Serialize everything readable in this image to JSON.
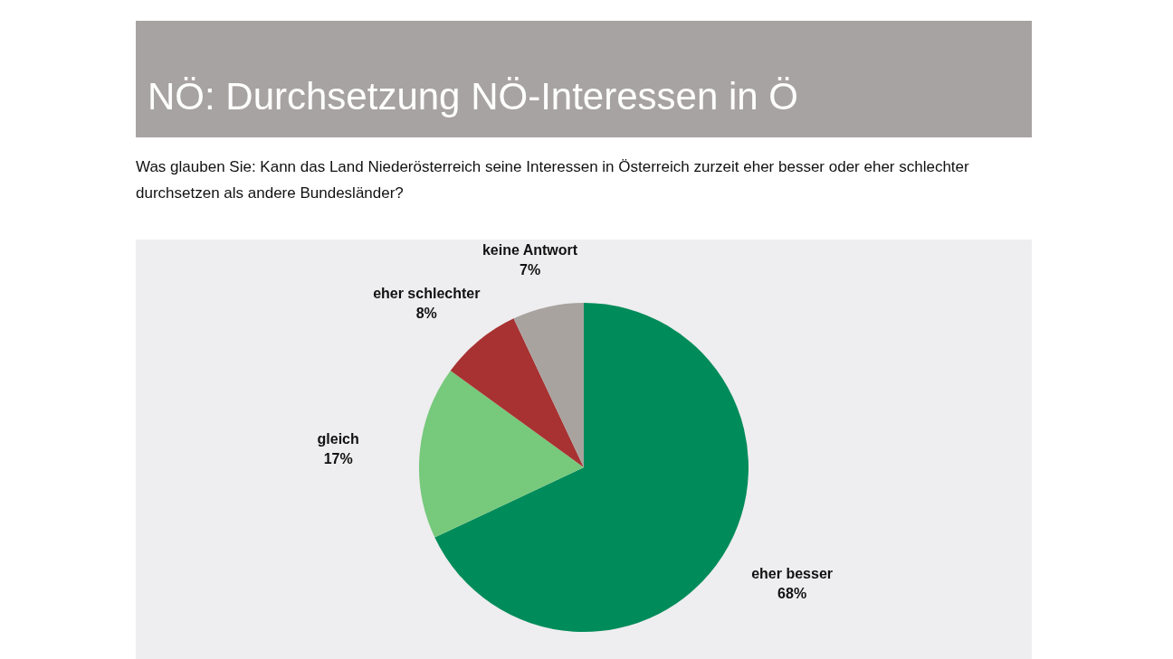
{
  "chart_data": {
    "type": "pie",
    "title": "NÖ: Durchsetzung NÖ-Interessen in Ö",
    "subtitle": "Was glauben Sie: Kann das Land Niederösterreich seine Interessen in Österreich zurzeit eher besser oder eher schlechter durchsetzen als andere Bundesländer?",
    "categories": [
      "eher besser",
      "gleich",
      "eher schlechter",
      "keine Antwort"
    ],
    "values": [
      68,
      17,
      8,
      7
    ],
    "colors": [
      "#008c5a",
      "#77c97c",
      "#a83232",
      "#a8a39f"
    ],
    "value_labels": [
      "68%",
      "17%",
      "8%",
      "7%"
    ],
    "legend": false
  }
}
